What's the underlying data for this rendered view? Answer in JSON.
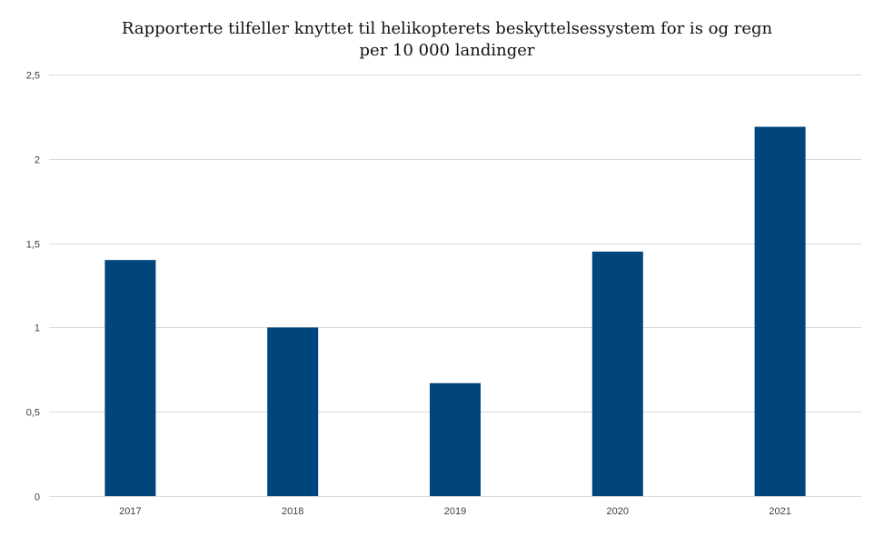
{
  "chart_data": {
    "type": "bar",
    "title_line1": "Rapporterte tilfeller knyttet til helikopterets beskyttelsessystem for is og regn",
    "title_line2": "per 10 000 landinger",
    "xlabel": "",
    "ylabel": "",
    "categories": [
      "2017",
      "2018",
      "2019",
      "2020",
      "2021"
    ],
    "values": [
      1.4,
      1.0,
      0.67,
      1.45,
      2.19
    ],
    "ylim": [
      0,
      2.5
    ],
    "yticks": [
      0,
      0.5,
      1,
      1.5,
      2,
      2.5
    ],
    "ytick_labels": [
      "0",
      "0,5",
      "1",
      "1,5",
      "2",
      "2,5"
    ],
    "grid": true,
    "legend": "none",
    "bar_color": "#00457c"
  }
}
